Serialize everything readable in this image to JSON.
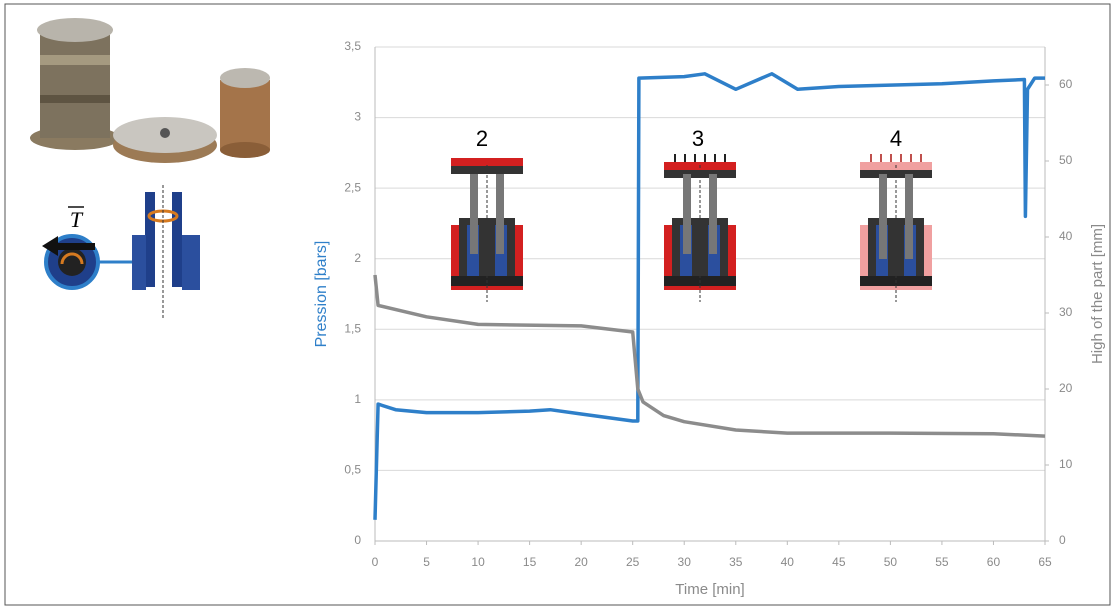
{
  "figure": {
    "tension_label": "T"
  },
  "chart_data": {
    "type": "line",
    "xlabel": "Time [min]",
    "ylabel": "Pression [bars]",
    "y2label": "High of the part [mm]",
    "xlim": [
      0,
      65
    ],
    "xticks": [
      0,
      5,
      10,
      15,
      20,
      25,
      30,
      35,
      40,
      45,
      50,
      55,
      60,
      65
    ],
    "ylim": [
      0,
      3.5
    ],
    "yticks": [
      0,
      {
        "value": 0.5,
        "label": "0,5"
      },
      1,
      {
        "value": 1.5,
        "label": "1,5"
      },
      2,
      {
        "value": 2.5,
        "label": "2,5"
      },
      3,
      {
        "value": 3.5,
        "label": "3,5"
      }
    ],
    "y2lim": [
      0,
      65
    ],
    "y2ticks": [
      0,
      10,
      20,
      30,
      40,
      50,
      60
    ],
    "grid": true,
    "annotations": [
      "2",
      "3",
      "4"
    ],
    "series": [
      {
        "name": "Pression",
        "color": "#2e7fc9",
        "x": [
          0,
          0.3,
          2,
          5,
          10,
          15,
          17,
          20,
          25,
          25.5,
          25.6,
          30,
          32,
          35,
          38.5,
          41,
          45,
          50,
          55,
          60,
          63,
          63.1,
          63.3,
          64,
          65
        ],
        "values": [
          0.15,
          0.97,
          0.93,
          0.91,
          0.91,
          0.92,
          0.93,
          0.9,
          0.85,
          0.85,
          3.28,
          3.29,
          3.31,
          3.2,
          3.31,
          3.2,
          3.22,
          3.23,
          3.24,
          3.26,
          3.27,
          2.3,
          3.2,
          3.28,
          3.28
        ]
      },
      {
        "name": "High of the part",
        "color": "#8c8c8c",
        "axis": "y2",
        "x": [
          0,
          0.3,
          5,
          10,
          20,
          25,
          25.5,
          26,
          28,
          30,
          35,
          40,
          50,
          60,
          65
        ],
        "values": [
          35,
          31,
          29.5,
          28.5,
          28.3,
          27.5,
          20,
          18.3,
          16.5,
          15.7,
          14.6,
          14.2,
          14.2,
          14.1,
          13.8
        ]
      }
    ]
  }
}
